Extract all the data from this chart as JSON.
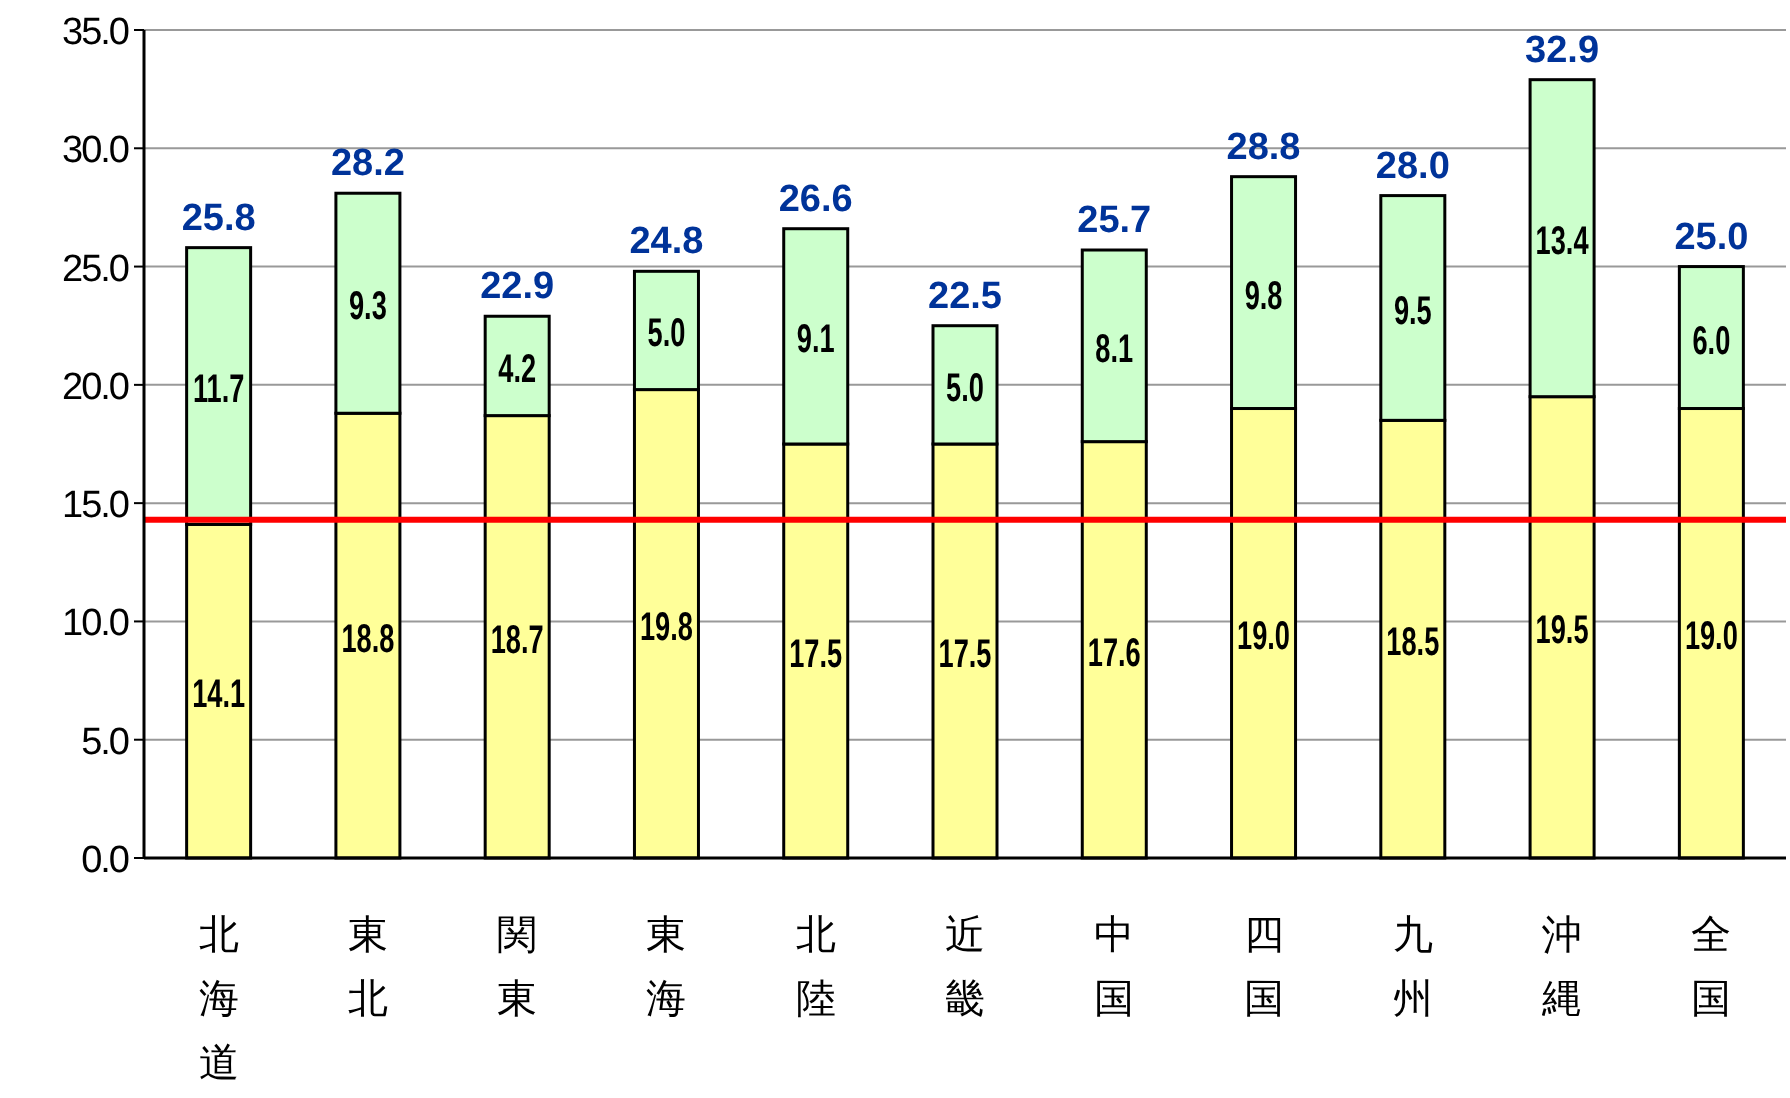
{
  "chart_data": {
    "type": "bar",
    "stacked": true,
    "categories": [
      "北海道",
      "東北",
      "関東",
      "東海",
      "北陸",
      "近畿",
      "中国",
      "四国",
      "九州",
      "沖縄",
      "全国"
    ],
    "series": [
      {
        "color": "#ffff99",
        "values": [
          14.1,
          18.8,
          18.7,
          19.8,
          17.5,
          17.5,
          17.6,
          19.0,
          18.5,
          19.5,
          19.0
        ],
        "value_labels": [
          "14.1",
          "18.8",
          "18.7",
          "19.8",
          "17.5",
          "17.5",
          "17.6",
          "19.0",
          "18.5",
          "19.5",
          "19.0"
        ]
      },
      {
        "color": "#ccffcc",
        "values": [
          11.7,
          9.3,
          4.2,
          5.0,
          9.1,
          5.0,
          8.1,
          9.8,
          9.5,
          13.4,
          6.0
        ],
        "value_labels": [
          "11.7",
          "9.3",
          "4.2",
          "5.0",
          "9.1",
          "5.0",
          "8.1",
          "9.8",
          "9.5",
          "13.4",
          "6.0"
        ]
      }
    ],
    "totals": [
      "25.8",
      "28.2",
      "22.9",
      "24.8",
      "26.6",
      "22.5",
      "25.7",
      "28.8",
      "28.0",
      "32.9",
      "25.0"
    ],
    "ylim": [
      0,
      35
    ],
    "yticks": [
      {
        "value": 0,
        "label": "0.0"
      },
      {
        "value": 5,
        "label": "5.0"
      },
      {
        "value": 10,
        "label": "10.0"
      },
      {
        "value": 15,
        "label": "15.0"
      },
      {
        "value": 20,
        "label": "20.0"
      },
      {
        "value": 25,
        "label": "25.0"
      },
      {
        "value": 30,
        "label": "30.0"
      },
      {
        "value": 35,
        "label": "35.0"
      }
    ],
    "grid": "y",
    "ref_lines": [
      {
        "axis": "y",
        "value": 14.3,
        "color": "#ff0000"
      }
    ]
  }
}
